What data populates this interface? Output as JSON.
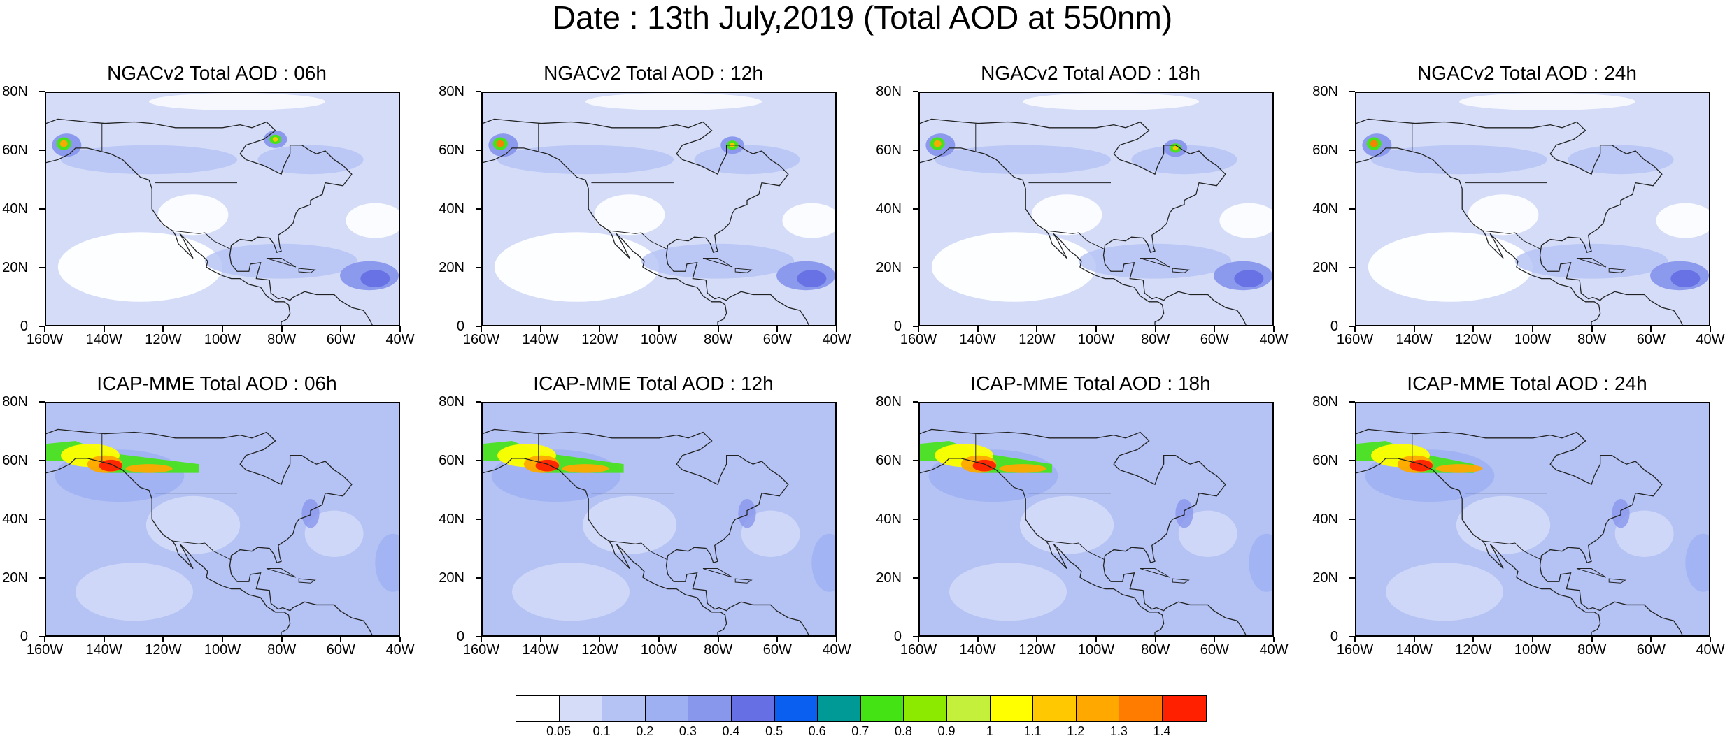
{
  "title": "Date : 13th July,2019 (Total AOD at 550nm)",
  "lat_labels": [
    "80N",
    "60N",
    "40N",
    "20N",
    "0"
  ],
  "lon_labels": [
    "160W",
    "140W",
    "120W",
    "100W",
    "80W",
    "60W",
    "40W"
  ],
  "panels": [
    {
      "title": "NGACv2 Total AOD : 06h",
      "model": "NGACv2",
      "forecast_hour": "06h",
      "plume_features": [
        "Alaska hotspot ~1.0",
        "Hudson Bay hotspot ~1.0",
        "Saharan dust off Caribbean ~0.5"
      ]
    },
    {
      "title": "NGACv2 Total AOD : 12h",
      "model": "NGACv2",
      "forecast_hour": "12h",
      "plume_features": [
        "Alaska hotspot ~1.0",
        "Quebec hotspot ~0.9",
        "Saharan dust off Caribbean ~0.5"
      ]
    },
    {
      "title": "NGACv2 Total AOD : 18h",
      "model": "NGACv2",
      "forecast_hour": "18h",
      "plume_features": [
        "Alaska hotspot ~1.1",
        "Quebec hotspot ~0.8",
        "Saharan dust off Caribbean ~0.5"
      ]
    },
    {
      "title": "NGACv2 Total AOD : 24h",
      "model": "NGACv2",
      "forecast_hour": "24h",
      "plume_features": [
        "Alaska hotspot ~0.9",
        "Saharan dust off Caribbean ~0.5"
      ]
    },
    {
      "title": "ICAP-MME Total AOD : 06h",
      "model": "ICAP-MME",
      "forecast_hour": "06h",
      "plume_features": [
        "Smoke plume Alaska to Canada 1.0-1.4"
      ]
    },
    {
      "title": "ICAP-MME Total AOD : 12h",
      "model": "ICAP-MME",
      "forecast_hour": "12h",
      "plume_features": [
        "Smoke plume Alaska to Canada 1.0-1.4"
      ]
    },
    {
      "title": "ICAP-MME Total AOD : 18h",
      "model": "ICAP-MME",
      "forecast_hour": "18h",
      "plume_features": [
        "Smoke plume Alaska to Canada 1.0-1.4"
      ]
    },
    {
      "title": "ICAP-MME Total AOD : 24h",
      "model": "ICAP-MME",
      "forecast_hour": "24h",
      "plume_features": [
        "Smoke plume Alaska to Canada 0.8-1.2"
      ]
    }
  ],
  "colorbar": {
    "labels": [
      "0.05",
      "0.1",
      "0.2",
      "0.3",
      "0.4",
      "0.5",
      "0.6",
      "0.7",
      "0.8",
      "0.9",
      "1",
      "1.1",
      "1.2",
      "1.3",
      "1.4"
    ],
    "colors": [
      "#ffffff",
      "#d4dcf8",
      "#b4c2f4",
      "#9eb0f2",
      "#8896ec",
      "#6670e4",
      "#0a5ef0",
      "#009a96",
      "#44e414",
      "#8cea00",
      "#c4f03c",
      "#ffff00",
      "#ffc800",
      "#ffa800",
      "#ff7c00",
      "#ff2000"
    ]
  }
}
